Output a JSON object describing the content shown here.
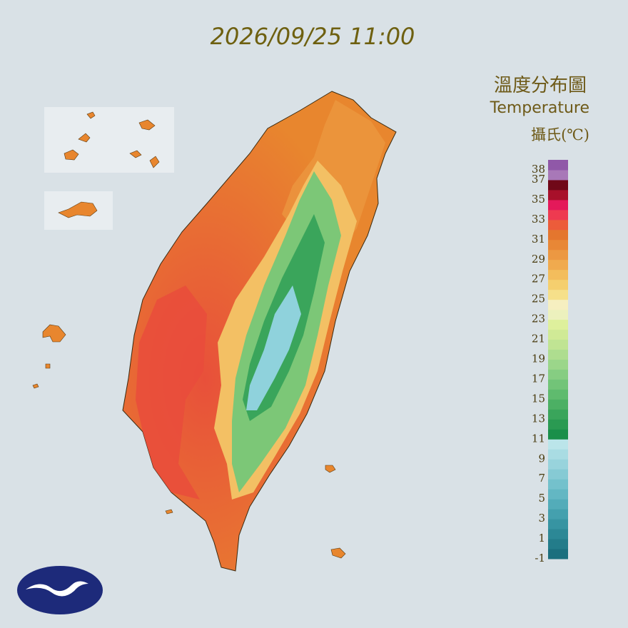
{
  "header": {
    "timestamp": "2026/09/25 11:00"
  },
  "legend": {
    "title": "溫度分布圖",
    "subtitle": "Temperature",
    "unit": "攝氏(℃)",
    "ylim": [
      -1,
      39
    ],
    "ticks": [
      38,
      37,
      35,
      33,
      31,
      29,
      27,
      25,
      23,
      21,
      19,
      17,
      15,
      13,
      11,
      9,
      7,
      5,
      3,
      1,
      -1
    ],
    "colors": [
      "#1b6f7e",
      "#237c8a",
      "#2c8896",
      "#3794a2",
      "#44a0ae",
      "#53acb9",
      "#63b7c3",
      "#74c1cc",
      "#86cad4",
      "#98d3dc",
      "#a9dce3",
      "#bbe5ea",
      "#1a8f4a",
      "#2a9a52",
      "#3aa55b",
      "#4cb064",
      "#5fbb6e",
      "#72c478",
      "#86cd82",
      "#9bd68a",
      "#aedd8f",
      "#c0e493",
      "#d0ea96",
      "#def09c",
      "#ecf1bd",
      "#f6efc0",
      "#f6e08a",
      "#f5cf6e",
      "#f3bd5c",
      "#f0aa4e",
      "#ec9842",
      "#e88736",
      "#e4762e",
      "#ec5c3a",
      "#ee3a50",
      "#e4195a",
      "#a8102a",
      "#700818",
      "#a878b8",
      "#9058a8"
    ]
  }
}
